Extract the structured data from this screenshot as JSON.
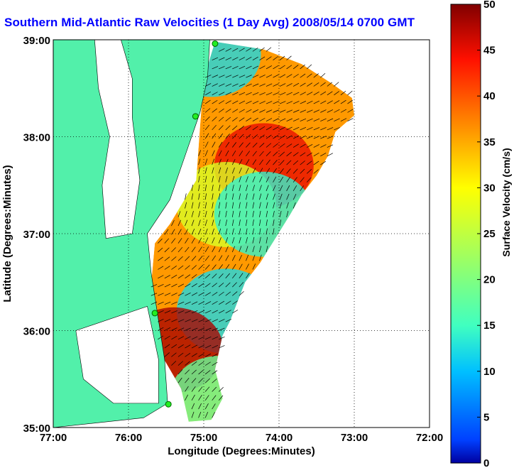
{
  "chart_data": {
    "type": "heatmap",
    "title": "Southern Mid-Atlantic Raw Velocities (1 Day Avg) 2008/05/14 0700 GMT",
    "xlabel": "Longitude (Degrees:Minutes)",
    "ylabel": "Latitude (Degrees:Minutes)",
    "x_ticks": [
      "77:00",
      "76:00",
      "75:00",
      "74:00",
      "73:00",
      "72:00"
    ],
    "y_ticks": [
      "39:00",
      "38:00",
      "37:00",
      "36:00",
      "35:00"
    ],
    "xlim": [
      -77,
      -72
    ],
    "ylim": [
      35,
      39
    ],
    "grid": true,
    "colorbar": {
      "label": "Surface Velocity (cm/s)",
      "ticks": [
        "0",
        "5",
        "10",
        "15",
        "20",
        "25",
        "30",
        "35",
        "40",
        "45",
        "50"
      ],
      "range": [
        0,
        50
      ],
      "colormap": "jet"
    },
    "colors": {
      "land": "#52f0aa",
      "background": "#ffffff",
      "title": "#0000ff",
      "station": "#22ee22"
    },
    "stations": [
      {
        "lon": -74.85,
        "lat": 38.96
      },
      {
        "lon": -75.11,
        "lat": 38.21
      },
      {
        "lon": -75.65,
        "lat": 36.18
      },
      {
        "lon": -75.47,
        "lat": 35.24
      }
    ],
    "velocity_zones": [
      {
        "lon": -74.9,
        "lat": 38.85,
        "speed": 12
      },
      {
        "lon": -74.2,
        "lat": 37.7,
        "speed": 45
      },
      {
        "lon": -74.7,
        "lat": 37.3,
        "speed": 27
      },
      {
        "lon": -74.2,
        "lat": 37.2,
        "speed": 14
      },
      {
        "lon": -74.7,
        "lat": 36.2,
        "speed": 12
      },
      {
        "lon": -75.4,
        "lat": 35.8,
        "speed": 48
      },
      {
        "lon": -74.8,
        "lat": 35.3,
        "speed": 18
      }
    ]
  }
}
